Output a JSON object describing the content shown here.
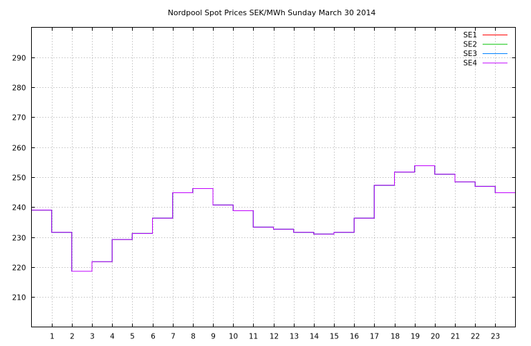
{
  "chart_data": {
    "type": "line",
    "step": true,
    "title": "Nordpool Spot Prices SEK/MWh Sunday March 30 2014",
    "xlabel": "",
    "ylabel": "",
    "xlim": [
      0,
      24
    ],
    "ylim": [
      200,
      300
    ],
    "x_ticks": [
      1,
      2,
      3,
      4,
      5,
      6,
      7,
      8,
      9,
      10,
      11,
      12,
      13,
      14,
      15,
      16,
      17,
      18,
      19,
      20,
      21,
      22,
      23
    ],
    "y_ticks": [
      210,
      220,
      230,
      240,
      250,
      260,
      270,
      280,
      290
    ],
    "grid": true,
    "legend_position": "top-right",
    "hours": [
      0,
      1,
      2,
      3,
      4,
      5,
      6,
      7,
      8,
      9,
      10,
      11,
      12,
      13,
      14,
      15,
      16,
      17,
      18,
      19,
      20,
      21,
      22,
      23
    ],
    "series": [
      {
        "name": "SE1",
        "color": "#ff0000",
        "values": [
          239.0,
          231.6,
          218.6,
          221.8,
          229.2,
          231.2,
          236.3,
          244.8,
          246.2,
          240.7,
          238.8,
          233.3,
          232.6,
          231.6,
          231.0,
          231.6,
          236.3,
          247.3,
          251.7,
          253.8,
          251.0,
          248.4,
          246.9,
          244.8
        ]
      },
      {
        "name": "SE2",
        "color": "#00c000",
        "values": [
          239.0,
          231.6,
          218.6,
          221.8,
          229.2,
          231.2,
          236.3,
          244.8,
          246.2,
          240.7,
          238.8,
          233.3,
          232.6,
          231.6,
          231.0,
          231.6,
          236.3,
          247.3,
          251.7,
          253.8,
          251.0,
          248.4,
          246.9,
          244.8
        ]
      },
      {
        "name": "SE3",
        "color": "#0080ff",
        "values": [
          239.0,
          231.6,
          218.6,
          221.8,
          229.2,
          231.2,
          236.3,
          244.8,
          246.2,
          240.7,
          238.8,
          233.3,
          232.6,
          231.6,
          231.0,
          231.6,
          236.3,
          247.3,
          251.7,
          253.8,
          251.0,
          248.4,
          246.9,
          244.8
        ]
      },
      {
        "name": "SE4",
        "color": "#c000ff",
        "values": [
          239.0,
          231.6,
          218.6,
          221.8,
          229.2,
          231.2,
          236.3,
          244.8,
          246.2,
          240.7,
          238.8,
          233.3,
          232.6,
          231.6,
          231.0,
          231.6,
          236.3,
          247.3,
          251.7,
          253.8,
          251.0,
          248.4,
          246.9,
          244.8
        ]
      }
    ]
  }
}
